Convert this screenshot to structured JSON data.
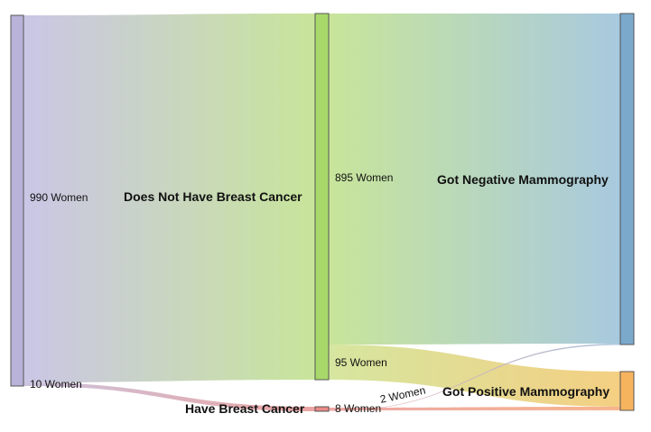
{
  "colors": {
    "population": "#b9b3d9",
    "no_cancer": "#a8d86a",
    "cancer": "#e88a88",
    "negative": "#7aa9cc",
    "positive": "#f7b45e",
    "node_stroke": "#555555"
  },
  "nodes": {
    "population": {
      "label": ""
    },
    "no_cancer": {
      "label": "Does Not Have Breast Cancer"
    },
    "cancer": {
      "label": "Have Breast Cancer"
    },
    "negative": {
      "label": "Got Negative Mammography"
    },
    "positive": {
      "label": "Got Positive Mammography"
    }
  },
  "flows": {
    "population_no_cancer": {
      "label": "990 Women",
      "value": 990
    },
    "population_cancer": {
      "label": "10 Women",
      "value": 10
    },
    "no_cancer_negative": {
      "label": "895 Women",
      "value": 895
    },
    "no_cancer_positive": {
      "label": "95 Women",
      "value": 95
    },
    "cancer_positive": {
      "label": "8 Women",
      "value": 8
    },
    "cancer_negative": {
      "label": "2 Women",
      "value": 2
    }
  }
}
